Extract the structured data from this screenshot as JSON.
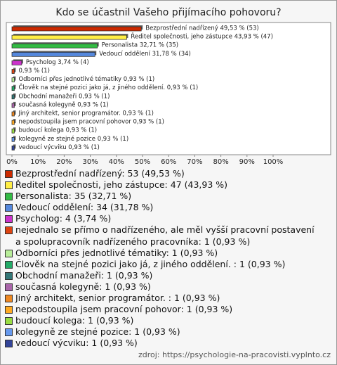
{
  "chart_data": {
    "type": "hbar",
    "title": "Kdo se účastnil Vašeho přijímacího pohovoru?",
    "categories": [
      "Bezprostřední nadřízený",
      "Ředitel společnosti, jeho zástupce",
      "Personalista",
      "Vedoucí oddělení",
      "Psycholog",
      null,
      "Odborníci přes jednotlivé tématiky",
      "Člověk na stejné pozici jako já, z jiného oddělení.",
      "Obchodní manažeři",
      "současná kolegyně",
      "Jiný architekt, senior programátor.",
      "nepodstoupila jsem pracovní pohovor",
      "budoucí kolega",
      "kolegyně ze stejné pozice",
      "vedoucí výcviku"
    ],
    "values": [
      49.53,
      43.93,
      32.71,
      31.78,
      3.74,
      0.93,
      0.93,
      0.93,
      0.93,
      0.93,
      0.93,
      0.93,
      0.93,
      0.93,
      0.93
    ],
    "value_labels": [
      "Bezprostřední nadřízený 49,53 % (53)",
      "Ředitel společnosti, jeho zástupce 43,93 % (47)",
      "Personalista 32,71 % (35)",
      "Vedoucí oddělení 31,78 % (34)",
      "Psycholog 3,74 % (4)",
      "0,93 % (1)",
      "Odborníci přes jednotlivé tématiky 0,93 % (1)",
      "Člověk na stejné pozici jako já, z jiného oddělení.  0,93 % (1)",
      "Obchodní manažeři 0,93 % (1)",
      "současná kolegyně 0,93 % (1)",
      "Jiný architekt, senior programátor.  0,93 % (1)",
      "nepodstoupila jsem pracovní pohovor 0,93 % (1)",
      "budoucí kolega 0,93 % (1)",
      "kolegyně ze stejné pozice 0,93 % (1)",
      "vedoucí výcviku 0,93 % (1)"
    ],
    "colors": [
      "#cc2a00",
      "#ffee44",
      "#33bb44",
      "#5588dd",
      "#cc33cc",
      "#dd4411",
      "#b8ee99",
      "#22aa66",
      "#337777",
      "#aa66aa",
      "#ee8822",
      "#ffaa22",
      "#99dd44",
      "#6699ee",
      "#334499"
    ],
    "legend": [
      "Bezprostřední nadřízený: 53 (49,53 %)",
      "Ředitel společnosti, jeho zástupce: 47 (43,93 %)",
      "Personalista: 35 (32,71 %)",
      "Vedoucí oddělení: 34 (31,78 %)",
      "Psycholog: 4 (3,74 %)",
      "nejednalo se přímo o nadřízeného, ale měl vyšší pracovní postavení a spolupracovník nadřízeného pracovníka: 1 (0,93 %)",
      "Odborníci přes jednotlivé tématiky: 1 (0,93 %)",
      "Člověk na stejné pozici jako já, z jiného oddělení. : 1 (0,93 %)",
      "Obchodní manažeři: 1 (0,93 %)",
      "současná kolegyně: 1 (0,93 %)",
      "Jiný architekt, senior programátor. : 1 (0,93 %)",
      "nepodstoupila jsem pracovní pohovor: 1 (0,93 %)",
      "budoucí kolega: 1 (0,93 %)",
      "kolegyně ze stejné pozice: 1 (0,93 %)",
      "vedoucí výcviku: 1 (0,93 %)"
    ],
    "xlim": [
      0,
      100
    ],
    "xticks": [
      {
        "value": 0,
        "label": "0%"
      },
      {
        "value": 10,
        "label": "10%"
      },
      {
        "value": 20,
        "label": "20%"
      },
      {
        "value": 30,
        "label": "30%"
      },
      {
        "value": 40,
        "label": "40%"
      },
      {
        "value": 50,
        "label": "50%"
      },
      {
        "value": 60,
        "label": "60%"
      },
      {
        "value": 70,
        "label": "70%"
      },
      {
        "value": 80,
        "label": "80%"
      },
      {
        "value": 90,
        "label": "90%"
      },
      {
        "value": 100,
        "label": "100%"
      }
    ],
    "source": "zdroj: https://psychologie-na-pracovisti.vyplnto.cz"
  }
}
